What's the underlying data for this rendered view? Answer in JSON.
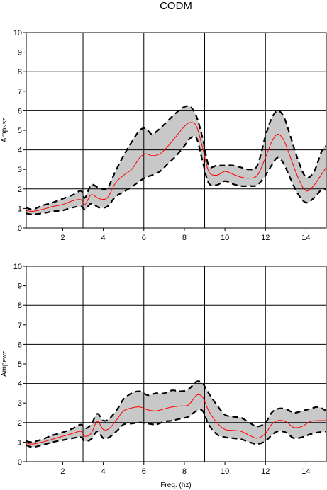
{
  "figure_title": "CODM",
  "colors": {
    "band_fill": "#c8c8c8",
    "band_edge": "#000000",
    "median_line": "#ff0000",
    "grid": "#000000"
  },
  "chart_data": [
    {
      "type": "area",
      "title": "",
      "xlabel": "",
      "ylabel_main": "Amp",
      "ylabel_sub": "NSZ",
      "xlim": [
        0.2,
        15
      ],
      "ylim": [
        0,
        10
      ],
      "x_ticks": [
        2,
        4,
        6,
        8,
        10,
        12,
        14
      ],
      "y_ticks": [
        0,
        1,
        2,
        3,
        4,
        5,
        6,
        7,
        8,
        9,
        10
      ],
      "x_grid": [
        3,
        6,
        9,
        12
      ],
      "y_grid": [
        2,
        4,
        6,
        8
      ],
      "legend": "none",
      "x": [
        0.2,
        0.5,
        1.0,
        1.5,
        2.0,
        2.5,
        2.9,
        3.1,
        3.4,
        3.8,
        4.2,
        4.6,
        5.0,
        5.4,
        5.8,
        6.1,
        6.4,
        6.8,
        7.2,
        7.6,
        8.0,
        8.3,
        8.6,
        8.9,
        9.2,
        9.6,
        10.0,
        10.4,
        10.8,
        11.2,
        11.6,
        12.0,
        12.3,
        12.6,
        12.9,
        13.2,
        13.6,
        14.0,
        14.4,
        14.8,
        15.0
      ],
      "series": [
        {
          "name": "",
          "values": [
            1.05,
            0.95,
            1.15,
            1.3,
            1.5,
            1.7,
            1.9,
            1.55,
            2.2,
            2.05,
            2.05,
            2.9,
            3.7,
            4.4,
            5.0,
            5.1,
            4.8,
            5.1,
            5.5,
            5.9,
            6.2,
            6.2,
            5.7,
            4.6,
            3.2,
            3.2,
            3.2,
            3.2,
            3.1,
            3.0,
            3.2,
            4.7,
            5.6,
            6.0,
            5.7,
            4.8,
            3.5,
            2.6,
            2.9,
            4.0,
            4.2
          ]
        },
        {
          "name": "",
          "values": [
            0.9,
            0.85,
            0.95,
            1.1,
            1.2,
            1.4,
            1.45,
            1.2,
            1.7,
            1.5,
            1.55,
            2.3,
            2.7,
            3.0,
            3.6,
            3.8,
            3.7,
            3.8,
            4.2,
            4.7,
            5.2,
            5.4,
            5.2,
            4.1,
            2.9,
            2.7,
            2.9,
            2.75,
            2.6,
            2.55,
            2.7,
            3.6,
            4.4,
            4.8,
            4.5,
            3.7,
            2.6,
            1.9,
            2.2,
            2.8,
            3.1
          ]
        },
        {
          "name": "",
          "values": [
            0.75,
            0.7,
            0.75,
            0.85,
            0.9,
            1.05,
            1.1,
            0.95,
            1.25,
            1.05,
            1.1,
            1.6,
            1.85,
            2.1,
            2.4,
            2.6,
            2.7,
            2.9,
            3.3,
            3.7,
            4.2,
            4.6,
            4.6,
            3.4,
            2.3,
            2.2,
            2.4,
            2.25,
            2.15,
            2.15,
            2.2,
            2.7,
            3.2,
            3.6,
            3.3,
            2.6,
            1.75,
            1.3,
            1.55,
            2.0,
            1.95
          ]
        }
      ]
    },
    {
      "type": "area",
      "title": "",
      "xlabel": "Freq. (hz)",
      "ylabel_main": "Amp",
      "ylabel_sub": "EWZ",
      "xlim": [
        0.2,
        15
      ],
      "ylim": [
        0,
        10
      ],
      "x_ticks": [
        2,
        4,
        6,
        8,
        10,
        12,
        14
      ],
      "y_ticks": [
        0,
        1,
        2,
        3,
        4,
        5,
        6,
        7,
        8,
        9,
        10
      ],
      "x_grid": [
        3,
        6,
        9,
        12
      ],
      "y_grid": [
        2,
        4,
        6,
        8
      ],
      "legend": "none",
      "x": [
        0.2,
        0.5,
        1.0,
        1.5,
        2.0,
        2.5,
        2.9,
        3.1,
        3.4,
        3.7,
        4.0,
        4.3,
        4.7,
        5.0,
        5.4,
        5.8,
        6.2,
        6.6,
        7.0,
        7.4,
        7.8,
        8.2,
        8.6,
        8.9,
        9.2,
        9.6,
        10.0,
        10.4,
        10.8,
        11.2,
        11.6,
        12.0,
        12.3,
        12.6,
        13.0,
        13.4,
        13.8,
        14.2,
        14.6,
        15.0
      ],
      "series": [
        {
          "name": "",
          "values": [
            1.05,
            1.0,
            1.15,
            1.35,
            1.5,
            1.7,
            1.9,
            1.7,
            1.9,
            2.45,
            2.1,
            2.2,
            2.7,
            3.2,
            3.5,
            3.6,
            3.4,
            3.5,
            3.5,
            3.65,
            3.6,
            3.7,
            4.1,
            4.0,
            3.5,
            2.9,
            2.4,
            2.3,
            2.25,
            2.0,
            1.8,
            2.0,
            2.5,
            2.7,
            2.7,
            2.5,
            2.6,
            2.7,
            2.8,
            2.6
          ]
        },
        {
          "name": "",
          "values": [
            0.95,
            0.9,
            1.0,
            1.15,
            1.3,
            1.45,
            1.55,
            1.3,
            1.45,
            2.05,
            1.65,
            1.7,
            2.2,
            2.6,
            2.75,
            2.8,
            2.65,
            2.6,
            2.7,
            2.8,
            2.85,
            2.9,
            3.4,
            3.3,
            2.6,
            2.0,
            1.65,
            1.6,
            1.55,
            1.35,
            1.2,
            1.45,
            1.9,
            2.1,
            2.05,
            1.75,
            1.8,
            2.05,
            2.1,
            2.1
          ]
        },
        {
          "name": "",
          "values": [
            0.85,
            0.75,
            0.85,
            1.0,
            1.1,
            1.2,
            1.25,
            1.05,
            1.15,
            1.55,
            1.2,
            1.25,
            1.6,
            1.9,
            1.95,
            2.0,
            1.95,
            1.9,
            2.05,
            2.1,
            2.2,
            2.3,
            2.6,
            2.6,
            1.9,
            1.4,
            1.25,
            1.2,
            1.15,
            1.0,
            0.9,
            1.05,
            1.35,
            1.55,
            1.5,
            1.2,
            1.25,
            1.4,
            1.5,
            1.55
          ]
        }
      ]
    }
  ]
}
